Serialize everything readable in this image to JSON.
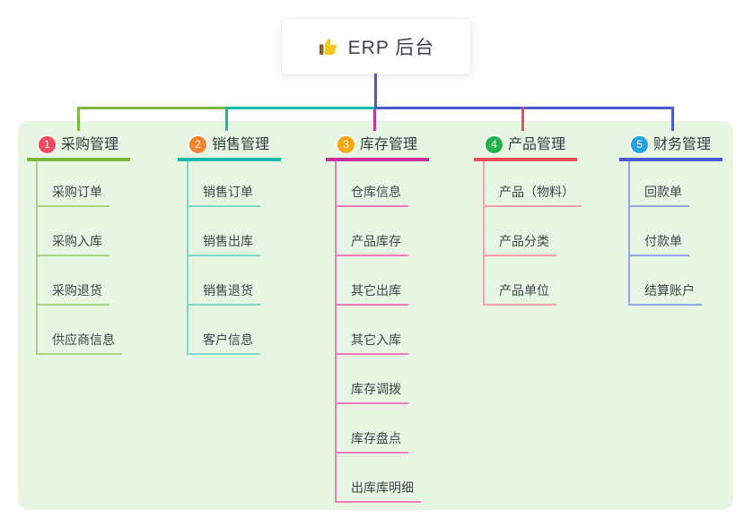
{
  "root": {
    "title": "ERP 后台",
    "icon": "thumbs-up-icon"
  },
  "colors": {
    "page_bg": "#ffffff",
    "panel_bg": "#e7f6e3",
    "root_line": "#4a5ad0",
    "root_text": "#3d434b",
    "module_text": "#353b41",
    "item_text": "#3f454b",
    "thumb_hand": "#fac423",
    "thumb_cuff": "#8c5a2b"
  },
  "columns": [
    {
      "num": "1",
      "title": "采购管理",
      "badge_color": "#f4495e",
      "line_color": "#7db83e",
      "thin_color": "#a9d283",
      "items": [
        "采购订单",
        "采购入库",
        "采购退货",
        "供应商信息"
      ]
    },
    {
      "num": "2",
      "title": "销售管理",
      "badge_color": "#f8832b",
      "line_color": "#14b8ac",
      "thin_color": "#7fd7ca",
      "items": [
        "销售订单",
        "销售出库",
        "销售退货",
        "客户信息"
      ]
    },
    {
      "num": "3",
      "title": "库存管理",
      "badge_color": "#f7a712",
      "line_color": "#ca309b",
      "thin_color": "#f27cba",
      "items": [
        "仓库信息",
        "产品库存",
        "其它出库",
        "其它入库",
        "库存调拨",
        "库存盘点",
        "出库库明细"
      ]
    },
    {
      "num": "4",
      "title": "产品管理",
      "badge_color": "#24b14a",
      "line_color": "#f04e5b",
      "thin_color": "#f7a2a8",
      "items": [
        "产品（物料）",
        "产品分类",
        "产品单位"
      ]
    },
    {
      "num": "5",
      "title": "财务管理",
      "badge_color": "#22a3e2",
      "line_color": "#4a5ad0",
      "thin_color": "#97a4e9",
      "items": [
        "回款单",
        "付款单",
        "结算账户"
      ]
    }
  ]
}
